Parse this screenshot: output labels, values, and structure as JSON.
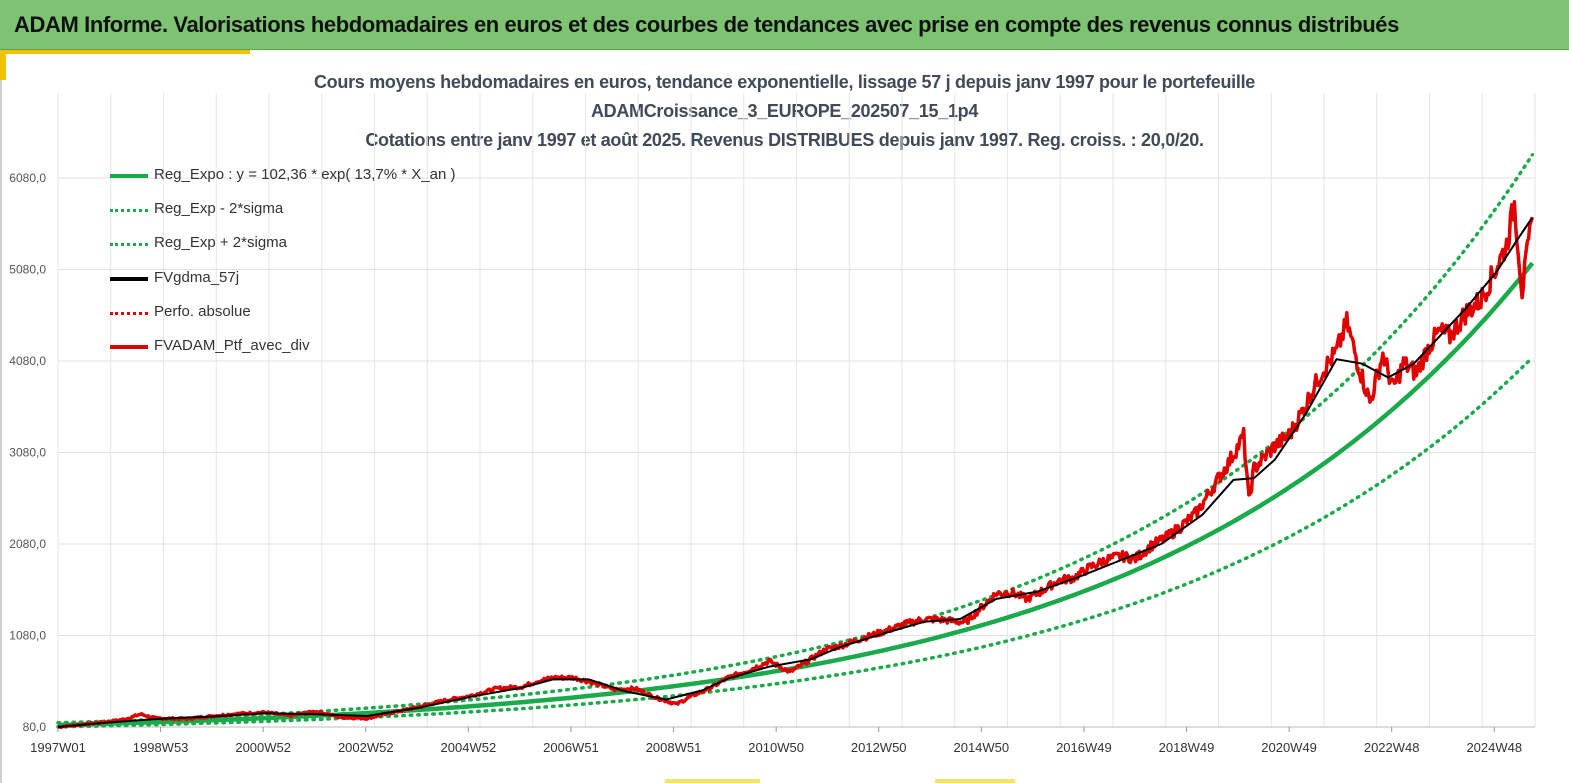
{
  "banner": {
    "title": "ADAM Informe. Valorisations hebdomadaires en euros et des courbes de tendances avec prise en compte des revenus connus distribués"
  },
  "colors": {
    "banner_bg": "#7dc372",
    "reg_expo": "#1aaa4b",
    "sigma": "#1aaa4b",
    "fvgdma": "#000000",
    "perfo": "#e00000",
    "fvadam": "#e00000",
    "accent": "#f2c200"
  },
  "chart_data": {
    "type": "line",
    "title_lines": [
      "Cours moyens hebdomadaires  en euros, tendance exponentielle, lissage 57 j depuis janv 1997 pour le portefeuille",
      "ADAMCroissance_3_EUROPE_202507_15_1p4",
      "Cotations  entre janv 1997 et août 2025. Revenus DISTRIBUES depuis janv 1997. Reg. croiss. : 20,0/20."
    ],
    "x_tick_labels": [
      "1997W01",
      "1998W53",
      "2000W52",
      "2002W52",
      "2004W52",
      "2006W51",
      "2008W51",
      "2010W50",
      "2012W50",
      "2014W50",
      "2016W49",
      "2018W49",
      "2020W49",
      "2022W48",
      "2024W48"
    ],
    "x_range": [
      1997.0,
      2025.65
    ],
    "y_tick_labels": [
      "80,0",
      "1080,0",
      "2080,0",
      "3080,0",
      "4080,0",
      "5080,0",
      "6080,0"
    ],
    "ylim": [
      80,
      6080
    ],
    "grid": true,
    "legend_position": "top-left",
    "legend": [
      {
        "label": "Reg_Expo : y = 102,36 * exp( 13,7% *  X_an )",
        "style": "solid-green"
      },
      {
        "label": "Reg_Exp - 2*sigma",
        "style": "dotted-green"
      },
      {
        "label": "Reg_Exp + 2*sigma",
        "style": "dotted-green"
      },
      {
        "label": "FVgdma_57j",
        "style": "solid-black"
      },
      {
        "label": "Perfo. absolue",
        "style": "dotted-red"
      },
      {
        "label": "FVADAM_Ptf_avec_div",
        "style": "solid-red"
      }
    ],
    "series": [
      {
        "name": "FVADAM_Ptf_avec_div",
        "x": [
          1997.0,
          1997.5,
          1998.0,
          1998.3,
          1998.6,
          1998.9,
          1999.5,
          2000.0,
          2000.5,
          2001.0,
          2001.5,
          2002.0,
          2002.5,
          2003.0,
          2003.5,
          2004.0,
          2004.5,
          2005.0,
          2005.5,
          2006.0,
          2006.3,
          2006.6,
          2007.0,
          2007.4,
          2007.8,
          2008.2,
          2008.6,
          2009.0,
          2009.3,
          2009.7,
          2010.0,
          2010.4,
          2010.8,
          2011.2,
          2011.6,
          2011.9,
          2012.2,
          2012.6,
          2013.0,
          2013.4,
          2013.8,
          2014.2,
          2014.6,
          2014.9,
          2015.2,
          2015.5,
          2015.8,
          2016.1,
          2016.4,
          2016.7,
          2017.0,
          2017.3,
          2017.6,
          2017.9,
          2018.2,
          2018.5,
          2018.8,
          2019.1,
          2019.4,
          2019.7,
          2020.0,
          2020.1,
          2020.2,
          2020.35,
          2020.6,
          2020.9,
          2021.2,
          2021.5,
          2021.8,
          2022.0,
          2022.2,
          2022.45,
          2022.7,
          2022.9,
          2023.1,
          2023.35,
          2023.6,
          2023.8,
          2024.0,
          2024.3,
          2024.6,
          2024.9,
          2025.1,
          2025.25,
          2025.4,
          2025.6
        ],
        "values": [
          80,
          110,
          140,
          165,
          220,
          175,
          170,
          200,
          225,
          240,
          205,
          250,
          185,
          175,
          240,
          300,
          370,
          420,
          500,
          520,
          580,
          620,
          620,
          560,
          490,
          500,
          400,
          330,
          420,
          520,
          620,
          700,
          800,
          680,
          820,
          930,
          970,
          1050,
          1120,
          1200,
          1260,
          1250,
          1220,
          1380,
          1540,
          1550,
          1480,
          1570,
          1680,
          1710,
          1820,
          1900,
          1950,
          1920,
          2060,
          2150,
          2280,
          2430,
          2700,
          2960,
          3260,
          2550,
          2900,
          3000,
          3150,
          3280,
          3600,
          3950,
          4180,
          4500,
          4080,
          3630,
          4150,
          3780,
          4050,
          3950,
          4250,
          4400,
          4350,
          4600,
          4750,
          5100,
          5350,
          5800,
          4850,
          5650
        ]
      },
      {
        "name": "FVgdma_57j",
        "x": [
          1997.0,
          1998.0,
          1999.0,
          2000.0,
          2001.0,
          2002.0,
          2003.0,
          2004.0,
          2005.0,
          2006.0,
          2006.6,
          2007.3,
          2008.0,
          2008.8,
          2009.5,
          2010.0,
          2010.8,
          2011.6,
          2012.2,
          2013.0,
          2013.8,
          2014.5,
          2015.2,
          2016.0,
          2016.8,
          2017.6,
          2018.4,
          2019.2,
          2019.8,
          2020.2,
          2020.6,
          2021.2,
          2021.8,
          2022.3,
          2022.8,
          2023.3,
          2023.8,
          2024.3,
          2024.9,
          2025.3,
          2025.6
        ],
        "values": [
          80,
          130,
          170,
          195,
          230,
          220,
          200,
          290,
          410,
          510,
          600,
          600,
          470,
          380,
          480,
          610,
          740,
          820,
          960,
          1100,
          1230,
          1260,
          1480,
          1560,
          1720,
          1900,
          2080,
          2400,
          2780,
          2800,
          3000,
          3500,
          4100,
          4050,
          3900,
          4050,
          4350,
          4650,
          5050,
          5400,
          5650
        ]
      },
      {
        "name": "Reg_Expo : y = 102,36 * exp( 13,7% *  X_an )",
        "function": "102.36*exp(0.137*(x-1997))",
        "x": [
          1997,
          2000,
          2005,
          2010,
          2015,
          2020,
          2025.6
        ],
        "values": [
          102,
          155,
          306,
          605,
          1195,
          2362,
          5120
        ]
      },
      {
        "name": "Reg_Exp - 2*sigma",
        "function": "0.80*102.36*exp(0.137*(x-1997))",
        "x": [
          1997,
          2005,
          2010,
          2015,
          2020,
          2025.6
        ],
        "values": [
          82,
          245,
          484,
          956,
          1890,
          4096
        ]
      },
      {
        "name": "Reg_Exp + 2*sigma",
        "function": "1.23*102.36*exp(0.137*(x-1997))",
        "x": [
          1997,
          2005,
          2010,
          2015,
          2020,
          2025.6
        ],
        "values": [
          126,
          376,
          744,
          1470,
          2905,
          6300
        ]
      }
    ]
  }
}
